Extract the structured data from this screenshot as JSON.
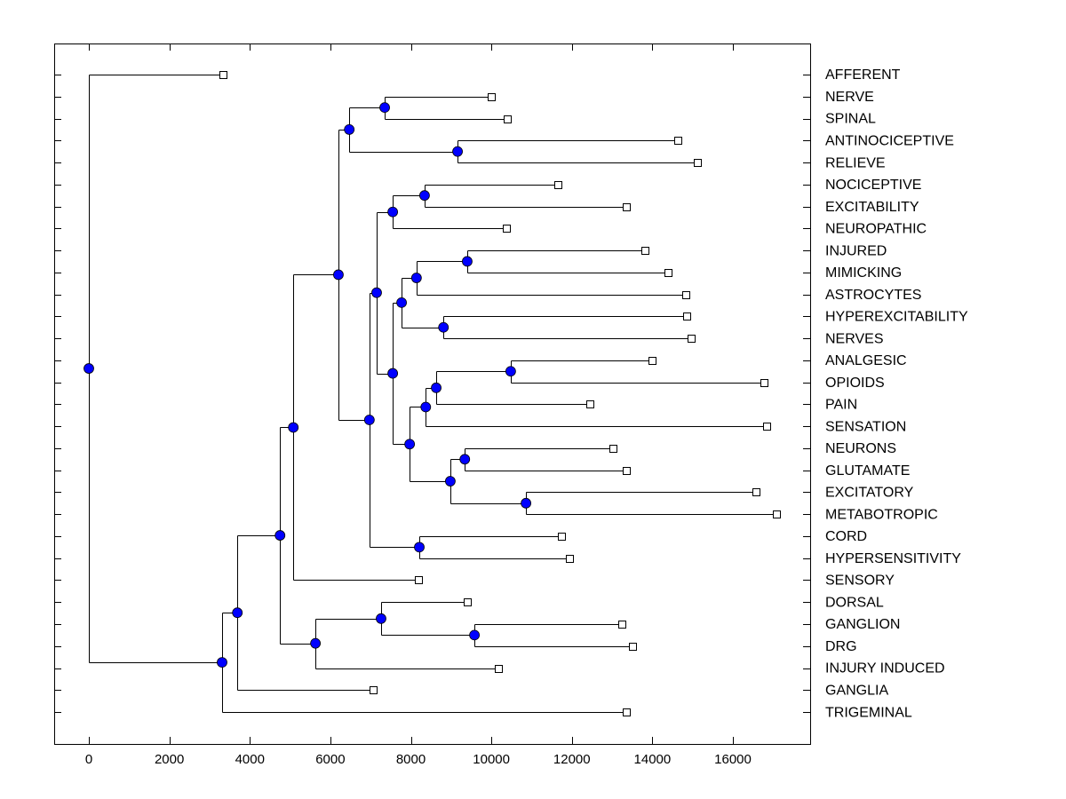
{
  "chart_data": {
    "type": "dendrogram",
    "title": "",
    "xlabel": "",
    "ylabel": "",
    "xlim": [
      -850,
      17900
    ],
    "x_ticks": [
      0,
      2000,
      4000,
      6000,
      8000,
      10000,
      12000,
      14000,
      16000
    ],
    "x_tick_labels": [
      "0",
      "2000",
      "4000",
      "6000",
      "8000",
      "10000",
      "12000",
      "14000",
      "16000"
    ],
    "grid": false,
    "leaf_labels_position": "right",
    "colors": {
      "node": "#0000ff",
      "leaf": "#ffffff",
      "line": "#000000"
    },
    "leaves": [
      {
        "label": "AFFERENT",
        "value": 3330
      },
      {
        "label": "NERVE",
        "value": 10000
      },
      {
        "label": "SPINAL",
        "value": 10400
      },
      {
        "label": "ANTINOCICEPTIVE",
        "value": 14630
      },
      {
        "label": "RELIEVE",
        "value": 15120
      },
      {
        "label": "NOCICEPTIVE",
        "value": 11650
      },
      {
        "label": "EXCITABILITY",
        "value": 13350
      },
      {
        "label": "NEUROPATHIC",
        "value": 10370
      },
      {
        "label": "INJURED",
        "value": 13820
      },
      {
        "label": "MIMICKING",
        "value": 14390
      },
      {
        "label": "ASTROCYTES",
        "value": 14830
      },
      {
        "label": "HYPEREXCITABILITY",
        "value": 14850
      },
      {
        "label": "NERVES",
        "value": 14960
      },
      {
        "label": "ANALGESIC",
        "value": 13990
      },
      {
        "label": "OPIOIDS",
        "value": 16770
      },
      {
        "label": "PAIN",
        "value": 12450
      },
      {
        "label": "SENSATION",
        "value": 16840
      },
      {
        "label": "NEURONS",
        "value": 13020
      },
      {
        "label": "GLUTAMATE",
        "value": 13350
      },
      {
        "label": "EXCITATORY",
        "value": 16580
      },
      {
        "label": "METABOTROPIC",
        "value": 17080
      },
      {
        "label": "CORD",
        "value": 11740
      },
      {
        "label": "HYPERSENSITIVITY",
        "value": 11940
      },
      {
        "label": "SENSORY",
        "value": 8190
      },
      {
        "label": "DORSAL",
        "value": 9400
      },
      {
        "label": "GANGLION",
        "value": 13240
      },
      {
        "label": "DRG",
        "value": 13510
      },
      {
        "label": "INJURY INDUCED",
        "value": 10170
      },
      {
        "label": "GANGLIA",
        "value": 7060
      },
      {
        "label": "TRIGEMINAL",
        "value": 13350
      }
    ],
    "nodes": [
      {
        "id": "root",
        "value": 0,
        "children": [
          "L:AFFERENT",
          "N1"
        ]
      },
      {
        "id": "N1",
        "value": 3310,
        "children": [
          "N2",
          "L:TRIGEMINAL"
        ]
      },
      {
        "id": "N2",
        "value": 3690,
        "children": [
          "N3",
          "L:GANGLIA"
        ]
      },
      {
        "id": "N3",
        "value": 4750,
        "children": [
          "N4",
          "N5"
        ]
      },
      {
        "id": "N4",
        "value": 5080,
        "children": [
          "N8",
          "L:SENSORY"
        ]
      },
      {
        "id": "N5",
        "value": 5630,
        "children": [
          "N6",
          "L:INJURY INDUCED"
        ]
      },
      {
        "id": "N6",
        "value": 7260,
        "children": [
          "L:DORSAL",
          "N7"
        ]
      },
      {
        "id": "N7",
        "value": 9580,
        "children": [
          "L:GANGLION",
          "L:DRG"
        ]
      },
      {
        "id": "N8",
        "value": 6200,
        "children": [
          "N9",
          "N10"
        ]
      },
      {
        "id": "N9",
        "value": 6470,
        "children": [
          "N11",
          "N12"
        ]
      },
      {
        "id": "N11",
        "value": 7350,
        "children": [
          "L:NERVE",
          "L:SPINAL"
        ]
      },
      {
        "id": "N12",
        "value": 9160,
        "children": [
          "L:ANTINOCICEPTIVE",
          "L:RELIEVE"
        ]
      },
      {
        "id": "N10",
        "value": 6970,
        "children": [
          "N13",
          "N14"
        ]
      },
      {
        "id": "N14",
        "value": 8210,
        "children": [
          "L:CORD",
          "L:HYPERSENSITIVITY"
        ]
      },
      {
        "id": "N13",
        "value": 7150,
        "children": [
          "N15",
          "N16"
        ]
      },
      {
        "id": "N15",
        "value": 7550,
        "children": [
          "N17",
          "L:NEUROPATHIC"
        ]
      },
      {
        "id": "N17",
        "value": 8340,
        "children": [
          "L:NOCICEPTIVE",
          "L:EXCITABILITY"
        ]
      },
      {
        "id": "N16",
        "value": 7550,
        "children": [
          "N18",
          "N19"
        ]
      },
      {
        "id": "N18",
        "value": 7770,
        "children": [
          "N20",
          "N21"
        ]
      },
      {
        "id": "N20",
        "value": 8140,
        "children": [
          "N22",
          "L:ASTROCYTES"
        ]
      },
      {
        "id": "N22",
        "value": 9400,
        "children": [
          "L:INJURED",
          "L:MIMICKING"
        ]
      },
      {
        "id": "N21",
        "value": 8810,
        "children": [
          "L:HYPEREXCITABILITY",
          "L:NERVES"
        ]
      },
      {
        "id": "N19",
        "value": 7970,
        "children": [
          "N23",
          "N24"
        ]
      },
      {
        "id": "N23",
        "value": 8370,
        "children": [
          "N25",
          "L:SENSATION"
        ]
      },
      {
        "id": "N25",
        "value": 8630,
        "children": [
          "N26",
          "L:PAIN"
        ]
      },
      {
        "id": "N26",
        "value": 10480,
        "children": [
          "L:ANALGESIC",
          "L:OPIOIDS"
        ]
      },
      {
        "id": "N24",
        "value": 8980,
        "children": [
          "N27",
          "N28"
        ]
      },
      {
        "id": "N27",
        "value": 9340,
        "children": [
          "L:NEURONS",
          "L:GLUTAMATE"
        ]
      },
      {
        "id": "N28",
        "value": 10860,
        "children": [
          "L:EXCITATORY",
          "L:METABOTROPIC"
        ]
      }
    ]
  }
}
